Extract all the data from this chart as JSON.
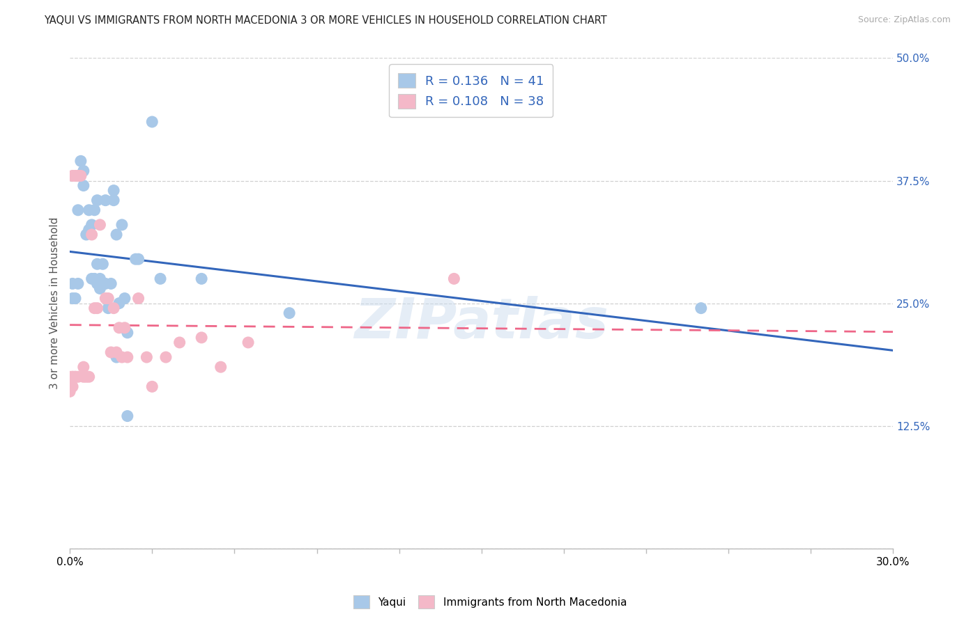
{
  "title": "YAQUI VS IMMIGRANTS FROM NORTH MACEDONIA 3 OR MORE VEHICLES IN HOUSEHOLD CORRELATION CHART",
  "source": "Source: ZipAtlas.com",
  "ylabel": "3 or more Vehicles in Household",
  "xlim": [
    0.0,
    0.3
  ],
  "ylim": [
    0.0,
    0.5
  ],
  "xticks": [
    0.0,
    0.03,
    0.06,
    0.09,
    0.12,
    0.15,
    0.18,
    0.21,
    0.24,
    0.27,
    0.3
  ],
  "xticklabels": [
    "0.0%",
    "",
    "",
    "",
    "",
    "",
    "",
    "",
    "",
    "",
    "30.0%"
  ],
  "yticks_right": [
    0.0,
    0.125,
    0.25,
    0.375,
    0.5
  ],
  "yticklabels_right": [
    "",
    "12.5%",
    "25.0%",
    "37.5%",
    "50.0%"
  ],
  "background_color": "#ffffff",
  "grid_color": "#d0d0d0",
  "watermark": "ZIPatlas",
  "legend_R1": "0.136",
  "legend_N1": "41",
  "legend_R2": "0.108",
  "legend_N2": "38",
  "color_blue": "#a8c8e8",
  "color_pink": "#f4b8c8",
  "line_blue": "#3366bb",
  "line_pink": "#ee6688",
  "text_blue": "#3366bb",
  "yaqui_x": [
    0.001,
    0.002,
    0.003,
    0.004,
    0.005,
    0.005,
    0.006,
    0.007,
    0.007,
    0.008,
    0.008,
    0.009,
    0.009,
    0.01,
    0.01,
    0.01,
    0.011,
    0.011,
    0.012,
    0.013,
    0.013,
    0.014,
    0.015,
    0.016,
    0.016,
    0.017,
    0.017,
    0.018,
    0.019,
    0.02,
    0.021,
    0.021,
    0.024,
    0.025,
    0.03,
    0.033,
    0.048,
    0.08,
    0.23,
    0.001,
    0.003
  ],
  "yaqui_y": [
    0.255,
    0.255,
    0.345,
    0.395,
    0.37,
    0.385,
    0.32,
    0.325,
    0.345,
    0.33,
    0.275,
    0.275,
    0.345,
    0.27,
    0.29,
    0.355,
    0.265,
    0.275,
    0.29,
    0.27,
    0.355,
    0.245,
    0.27,
    0.365,
    0.355,
    0.32,
    0.195,
    0.25,
    0.33,
    0.255,
    0.22,
    0.135,
    0.295,
    0.295,
    0.435,
    0.275,
    0.275,
    0.24,
    0.245,
    0.27,
    0.27
  ],
  "macedonia_x": [
    0.0,
    0.0,
    0.001,
    0.001,
    0.001,
    0.002,
    0.002,
    0.003,
    0.003,
    0.004,
    0.005,
    0.005,
    0.006,
    0.007,
    0.008,
    0.009,
    0.01,
    0.011,
    0.013,
    0.014,
    0.015,
    0.016,
    0.017,
    0.018,
    0.019,
    0.02,
    0.021,
    0.025,
    0.028,
    0.03,
    0.035,
    0.04,
    0.048,
    0.055,
    0.065,
    0.14,
    0.001,
    0.002
  ],
  "macedonia_y": [
    0.175,
    0.16,
    0.175,
    0.165,
    0.38,
    0.175,
    0.38,
    0.175,
    0.38,
    0.38,
    0.175,
    0.185,
    0.175,
    0.175,
    0.32,
    0.245,
    0.245,
    0.33,
    0.255,
    0.255,
    0.2,
    0.245,
    0.2,
    0.225,
    0.195,
    0.225,
    0.195,
    0.255,
    0.195,
    0.165,
    0.195,
    0.21,
    0.215,
    0.185,
    0.21,
    0.275,
    0.175,
    0.175
  ]
}
